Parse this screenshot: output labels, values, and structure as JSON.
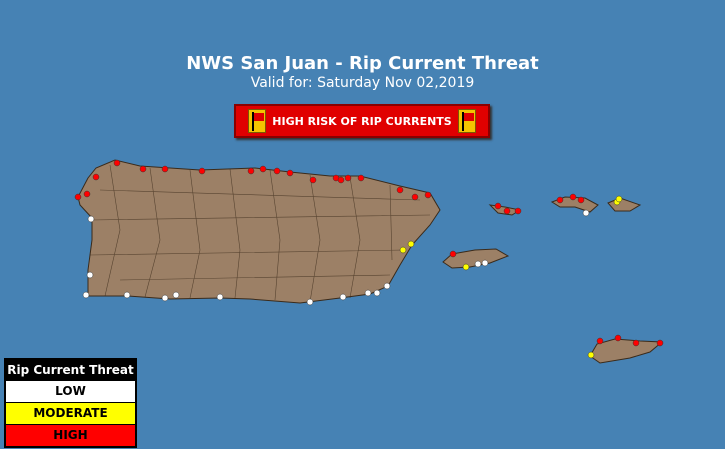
{
  "title": "NWS San Juan - Rip Current Threat",
  "subtitle": "Valid for: Saturday Nov 02,2019",
  "banner": {
    "label": "HIGH RISK OF RIP CURRENTS",
    "icon": "red-flag-icon"
  },
  "legend": {
    "title": "Rip Current Threat",
    "items": [
      {
        "label": "LOW",
        "color": "#ffffff"
      },
      {
        "label": "MODERATE",
        "color": "#ffff00"
      },
      {
        "label": "HIGH",
        "color": "#ff0000"
      }
    ]
  },
  "colors": {
    "water": "#4682b4",
    "land": "#9c8066"
  }
}
